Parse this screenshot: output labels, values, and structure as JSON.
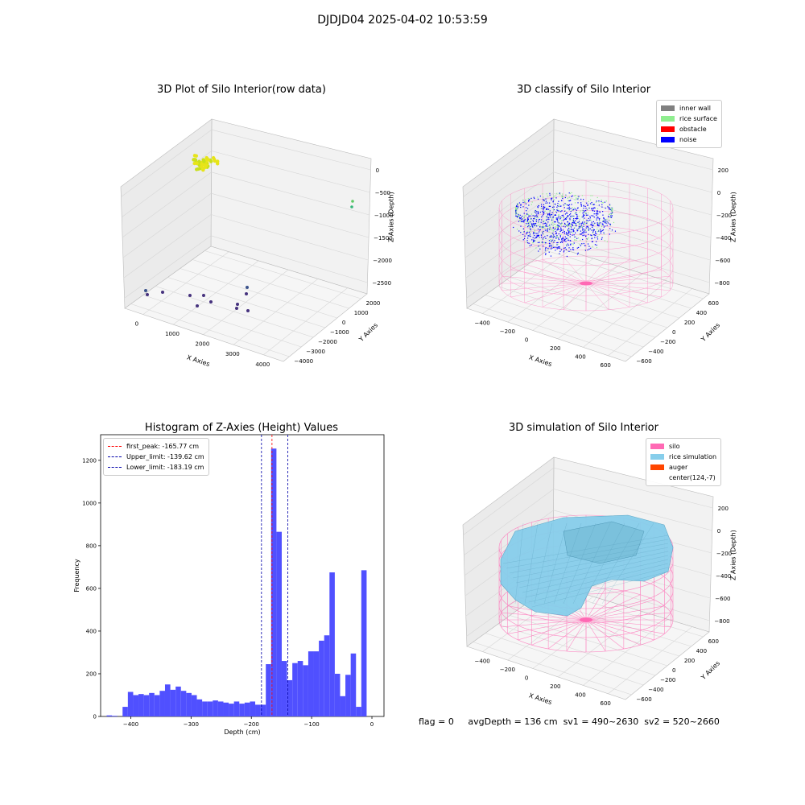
{
  "suptitle": "DJDJD04 2025-04-02 10:53:59",
  "colors": {
    "inner_wall": "#808080",
    "rice_surface": "#90ee90",
    "obstacle": "#ff0000",
    "noise": "#0000ff",
    "silo": "#ff69b4",
    "rice_simulation": "#87ceeb",
    "auger": "#ff4500",
    "hist_bar": "#5050ff",
    "peak_line": "#ff0000",
    "limit_line": "#0000aa"
  },
  "footer": {
    "flag": "flag = 0",
    "avg": "avgDepth = 136 cm",
    "sv1": "sv1 = 490~2630",
    "sv2": "sv2 = 520~2660"
  },
  "chart_data": [
    {
      "type": "scatter",
      "title": "3D Plot of Silo Interior(row data)",
      "xlabel": "X Axies",
      "ylabel": "Y Axies",
      "zlabel": "Z Axies (Depth)",
      "x_ticks": [
        "0",
        "1000",
        "2000",
        "3000",
        "4000"
      ],
      "y_ticks": [
        "−4000",
        "−3000",
        "−2000",
        "−1000",
        "0",
        "1000",
        "2000"
      ],
      "z_ticks": [
        "0",
        "−500",
        "−1000",
        "−1500",
        "−2000",
        "−2500"
      ]
    },
    {
      "type": "scatter",
      "title": "3D classify of Silo Interior",
      "xlabel": "X Axies",
      "ylabel": "Y Axies",
      "zlabel": "Z Axies (Depth)",
      "x_ticks": [
        "−400",
        "−200",
        "0",
        "200",
        "400",
        "600"
      ],
      "y_ticks": [
        "−600",
        "−400",
        "−200",
        "0",
        "200",
        "400",
        "600"
      ],
      "z_ticks": [
        "200",
        "0",
        "−200",
        "−400",
        "−600",
        "−800"
      ],
      "legend": [
        "inner wall",
        "rice surface",
        "obstacle",
        "noise"
      ],
      "legend_position": "top-right"
    },
    {
      "type": "bar",
      "title": "Histogram of Z-Axies (Height) Values",
      "xlabel": "Depth (cm)",
      "ylabel": "Frequency",
      "xlim": [
        -450,
        20
      ],
      "ylim": [
        0,
        1320
      ],
      "x_ticks": [
        -400,
        -300,
        -200,
        -100,
        0
      ],
      "y_ticks": [
        0,
        200,
        400,
        600,
        800,
        1000,
        1200
      ],
      "bin_start": -440,
      "bin_width": 8.8,
      "values": [
        5,
        3,
        0,
        45,
        115,
        100,
        105,
        100,
        110,
        100,
        120,
        150,
        125,
        140,
        120,
        110,
        100,
        80,
        70,
        70,
        75,
        70,
        65,
        60,
        70,
        60,
        65,
        70,
        55,
        55,
        245,
        1255,
        865,
        260,
        170,
        250,
        260,
        240,
        305,
        305,
        355,
        380,
        675,
        200,
        95,
        195,
        295,
        45,
        685
      ],
      "vlines": [
        {
          "label": "first_peak: -165.77 cm",
          "x": -165.77,
          "color": "red"
        },
        {
          "label": "Upper_limit: -139.62 cm",
          "x": -139.62,
          "color": "blue"
        },
        {
          "label": "Lower_limit: -183.19 cm",
          "x": -183.19,
          "color": "blue"
        }
      ],
      "legend_position": "top-left"
    },
    {
      "type": "scatter",
      "title": "3D simulation of Silo Interior",
      "xlabel": "X Axies",
      "ylabel": "Y Axies",
      "zlabel": "Z Axies (Depth)",
      "x_ticks": [
        "−400",
        "−200",
        "0",
        "200",
        "400",
        "600"
      ],
      "y_ticks": [
        "−600",
        "−400",
        "−200",
        "0",
        "200",
        "400",
        "600"
      ],
      "z_ticks": [
        "200",
        "0",
        "−200",
        "−400",
        "−600",
        "−800"
      ],
      "legend": [
        "silo",
        "rice simulation",
        "auger",
        "center(124,-7)"
      ],
      "legend_position": "top-right"
    }
  ]
}
